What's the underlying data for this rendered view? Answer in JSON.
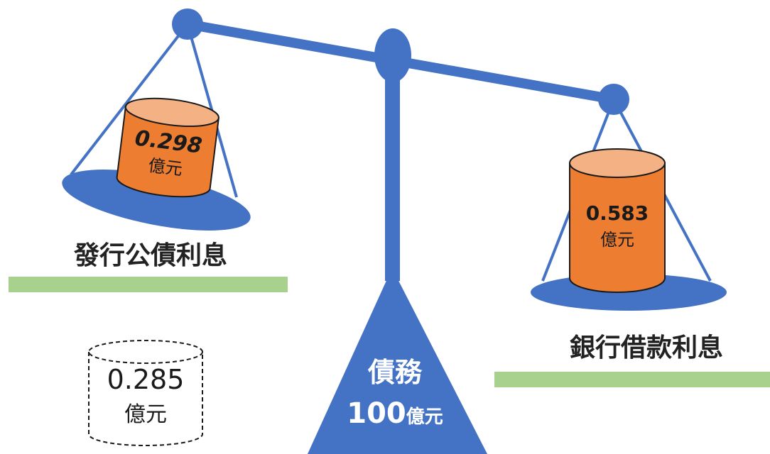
{
  "colors": {
    "beam_blue": "#4472C4",
    "pan_blue": "#4472C4",
    "cylinder_orange": "#ED7D31",
    "cylinder_top": "#F4B183",
    "underline_green": "#A9D18E",
    "label_white": "#FFFFFF",
    "text_dark": "#222222"
  },
  "left_pan": {
    "label": "發行公債利息",
    "cylinder": {
      "value": "0.298",
      "unit": "億元"
    }
  },
  "right_pan": {
    "label": "銀行借款利息",
    "cylinder": {
      "value": "0.583",
      "unit": "億元"
    }
  },
  "difference": {
    "value": "0.285",
    "unit": "億元"
  },
  "fulcrum": {
    "title": "債務",
    "amount": "100",
    "amount_unit": "億元"
  }
}
